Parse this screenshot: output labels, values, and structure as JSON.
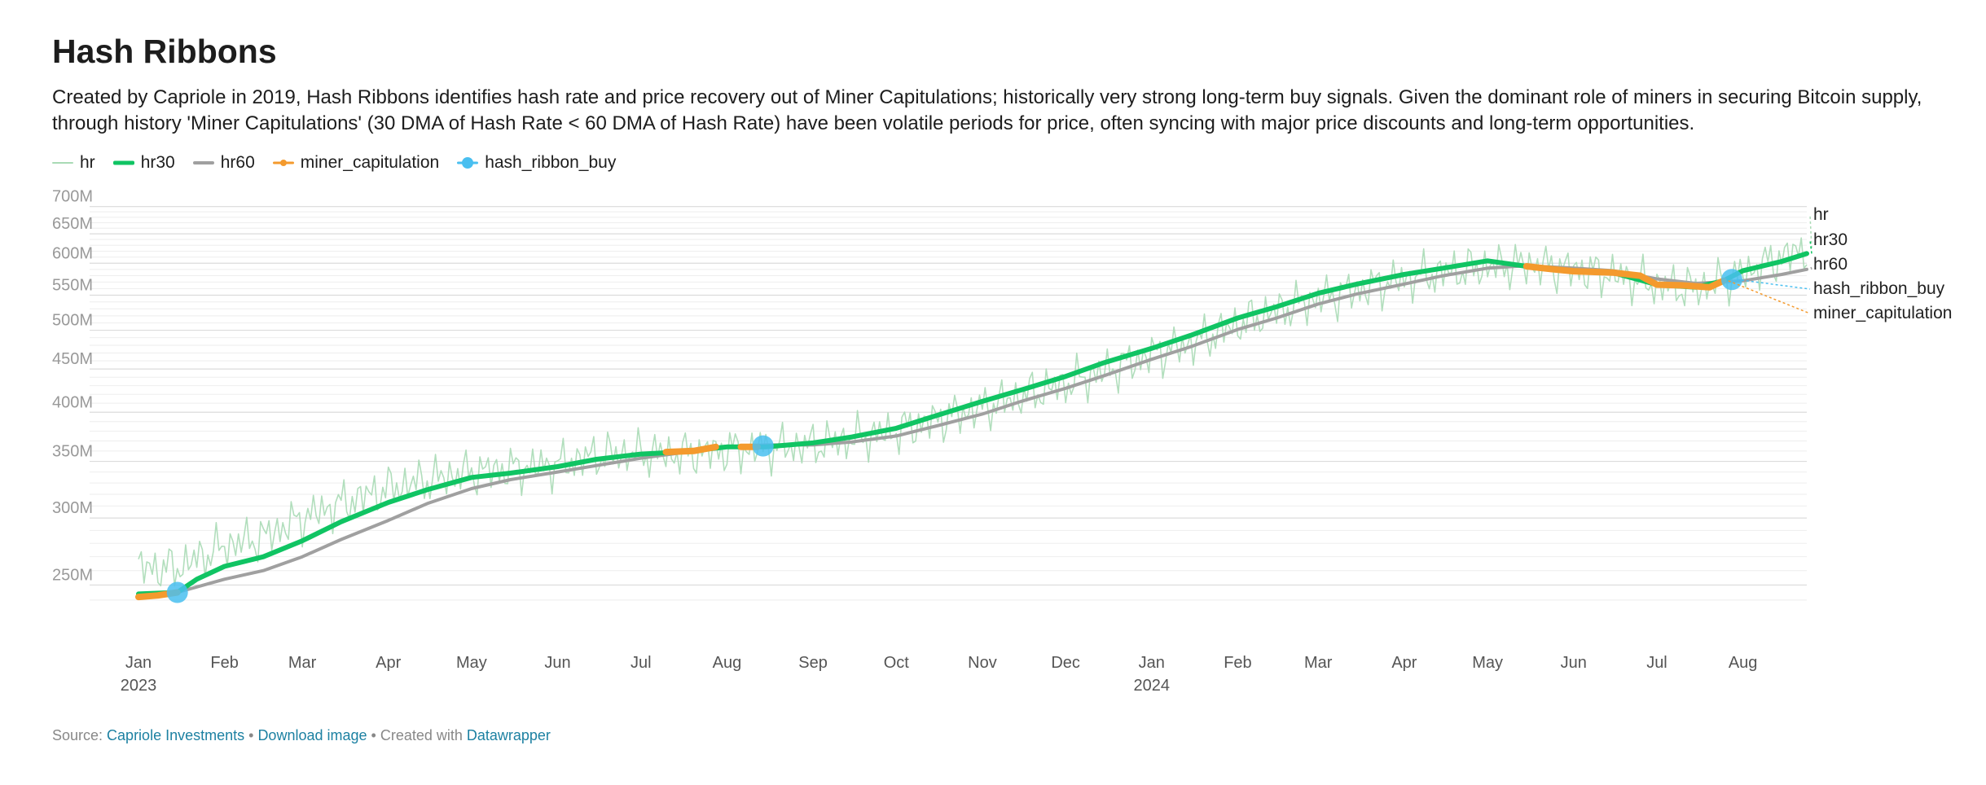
{
  "title": "Hash Ribbons",
  "description": "Created by Capriole in 2019, Hash Ribbons identifies hash rate and price recovery out of Miner Capitulations; historically very strong long-term buy signals. Given the dominant role of miners in securing Bitcoin supply, through history 'Miner Capitulations' (30 DMA of Hash Rate < 60 DMA of Hash Rate) have been volatile periods for price, often syncing with major price discounts and long-term opportunities.",
  "legend": [
    {
      "label": "hr",
      "color": "#a9dab5",
      "style": "thin-line"
    },
    {
      "label": "hr30",
      "color": "#10c463",
      "style": "thick-line"
    },
    {
      "label": "hr60",
      "color": "#a0a0a0",
      "style": "line"
    },
    {
      "label": "miner_capitulation",
      "color": "#f49a2d",
      "style": "line-dot"
    },
    {
      "label": "hash_ribbon_buy",
      "color": "#49bff0",
      "style": "line-bigdot"
    }
  ],
  "footer": {
    "source_prefix": "Source: ",
    "source_link": "Capriole Investments",
    "sep1": " • ",
    "download_link": "Download image",
    "sep2": " • Created with ",
    "tool_link": "Datawrapper"
  },
  "chart_data": {
    "type": "line",
    "scale_y": "log",
    "ylim": [
      228,
      712
    ],
    "x_start": "2023-01-01",
    "x_end": "2024-08-24",
    "y_ticks": [
      {
        "value": 250,
        "label": "250M"
      },
      {
        "value": 300,
        "label": "300M"
      },
      {
        "value": 350,
        "label": "350M"
      },
      {
        "value": 400,
        "label": "400M"
      },
      {
        "value": 450,
        "label": "450M"
      },
      {
        "value": 500,
        "label": "500M"
      },
      {
        "value": 550,
        "label": "550M"
      },
      {
        "value": 600,
        "label": "600M"
      },
      {
        "value": 650,
        "label": "650M"
      },
      {
        "value": 700,
        "label": "700M"
      }
    ],
    "x_ticks": [
      {
        "date": "2023-01-01",
        "label": "Jan",
        "sublabel": "2023"
      },
      {
        "date": "2023-02-01",
        "label": "Feb"
      },
      {
        "date": "2023-03-01",
        "label": "Mar"
      },
      {
        "date": "2023-04-01",
        "label": "Apr"
      },
      {
        "date": "2023-05-01",
        "label": "May"
      },
      {
        "date": "2023-06-01",
        "label": "Jun"
      },
      {
        "date": "2023-07-01",
        "label": "Jul"
      },
      {
        "date": "2023-08-01",
        "label": "Aug"
      },
      {
        "date": "2023-09-01",
        "label": "Sep"
      },
      {
        "date": "2023-10-01",
        "label": "Oct"
      },
      {
        "date": "2023-11-01",
        "label": "Nov"
      },
      {
        "date": "2023-12-01",
        "label": "Dec"
      },
      {
        "date": "2024-01-01",
        "label": "Jan",
        "sublabel": "2024"
      },
      {
        "date": "2024-02-01",
        "label": "Feb"
      },
      {
        "date": "2024-03-01",
        "label": "Mar"
      },
      {
        "date": "2024-04-01",
        "label": "Apr"
      },
      {
        "date": "2024-05-01",
        "label": "May"
      },
      {
        "date": "2024-06-01",
        "label": "Jun"
      },
      {
        "date": "2024-07-01",
        "label": "Jul"
      },
      {
        "date": "2024-08-01",
        "label": "Aug"
      }
    ],
    "series": [
      {
        "name": "hr",
        "color": "#a9dab5",
        "points": [
          [
            "2023-01-01",
            262
          ],
          [
            "2023-01-15",
            262
          ],
          [
            "2023-02-01",
            278
          ],
          [
            "2023-02-15",
            285
          ],
          [
            "2023-03-01",
            300
          ],
          [
            "2023-03-15",
            312
          ],
          [
            "2023-04-01",
            325
          ],
          [
            "2023-04-15",
            333
          ],
          [
            "2023-05-01",
            340
          ],
          [
            "2023-05-15",
            343
          ],
          [
            "2023-06-01",
            347
          ],
          [
            "2023-06-15",
            356
          ],
          [
            "2023-07-01",
            358
          ],
          [
            "2023-07-15",
            357
          ],
          [
            "2023-08-01",
            361
          ],
          [
            "2023-08-15",
            363
          ],
          [
            "2023-09-01",
            366
          ],
          [
            "2023-09-15",
            372
          ],
          [
            "2023-10-01",
            380
          ],
          [
            "2023-10-15",
            392
          ],
          [
            "2023-11-01",
            405
          ],
          [
            "2023-11-15",
            418
          ],
          [
            "2023-12-01",
            432
          ],
          [
            "2023-12-15",
            447
          ],
          [
            "2024-01-01",
            468
          ],
          [
            "2024-01-15",
            482
          ],
          [
            "2024-02-01",
            508
          ],
          [
            "2024-02-15",
            527
          ],
          [
            "2024-03-01",
            545
          ],
          [
            "2024-03-15",
            558
          ],
          [
            "2024-04-01",
            575
          ],
          [
            "2024-04-15",
            585
          ],
          [
            "2024-05-01",
            595
          ],
          [
            "2024-05-15",
            598
          ],
          [
            "2024-06-01",
            590
          ],
          [
            "2024-06-15",
            582
          ],
          [
            "2024-07-01",
            565
          ],
          [
            "2024-07-15",
            560
          ],
          [
            "2024-08-01",
            583
          ],
          [
            "2024-08-15",
            610
          ],
          [
            "2024-08-24",
            625
          ]
        ]
      },
      {
        "name": "hr30",
        "color": "#10c463",
        "points": [
          [
            "2023-01-01",
            244
          ],
          [
            "2023-01-15",
            245
          ],
          [
            "2023-01-22",
            254
          ],
          [
            "2023-02-01",
            263
          ],
          [
            "2023-02-15",
            270
          ],
          [
            "2023-03-01",
            282
          ],
          [
            "2023-03-15",
            297
          ],
          [
            "2023-04-01",
            313
          ],
          [
            "2023-04-15",
            324
          ],
          [
            "2023-05-01",
            335
          ],
          [
            "2023-05-15",
            339
          ],
          [
            "2023-06-01",
            345
          ],
          [
            "2023-06-15",
            352
          ],
          [
            "2023-07-01",
            357
          ],
          [
            "2023-07-15",
            359
          ],
          [
            "2023-08-01",
            364
          ],
          [
            "2023-08-15",
            364
          ],
          [
            "2023-09-01",
            368
          ],
          [
            "2023-09-15",
            374
          ],
          [
            "2023-10-01",
            383
          ],
          [
            "2023-10-15",
            396
          ],
          [
            "2023-11-01",
            412
          ],
          [
            "2023-11-15",
            425
          ],
          [
            "2023-12-01",
            441
          ],
          [
            "2023-12-15",
            458
          ],
          [
            "2024-01-01",
            476
          ],
          [
            "2024-01-15",
            493
          ],
          [
            "2024-02-01",
            517
          ],
          [
            "2024-02-15",
            533
          ],
          [
            "2024-03-01",
            553
          ],
          [
            "2024-03-15",
            567
          ],
          [
            "2024-04-01",
            582
          ],
          [
            "2024-04-15",
            592
          ],
          [
            "2024-05-01",
            604
          ],
          [
            "2024-05-15",
            595
          ],
          [
            "2024-06-01",
            587
          ],
          [
            "2024-06-15",
            585
          ],
          [
            "2024-07-01",
            566
          ],
          [
            "2024-07-15",
            562
          ],
          [
            "2024-07-25",
            572
          ],
          [
            "2024-08-01",
            588
          ],
          [
            "2024-08-15",
            603
          ],
          [
            "2024-08-24",
            616
          ]
        ]
      },
      {
        "name": "hr60",
        "color": "#a0a0a0",
        "points": [
          [
            "2023-01-01",
            242
          ],
          [
            "2023-01-15",
            245
          ],
          [
            "2023-02-01",
            254
          ],
          [
            "2023-02-15",
            260
          ],
          [
            "2023-03-01",
            270
          ],
          [
            "2023-03-15",
            283
          ],
          [
            "2023-04-01",
            298
          ],
          [
            "2023-04-15",
            312
          ],
          [
            "2023-05-01",
            325
          ],
          [
            "2023-05-15",
            333
          ],
          [
            "2023-06-01",
            340
          ],
          [
            "2023-06-15",
            346
          ],
          [
            "2023-07-01",
            353
          ],
          [
            "2023-07-15",
            358
          ],
          [
            "2023-08-01",
            364
          ],
          [
            "2023-08-15",
            366
          ],
          [
            "2023-09-01",
            366
          ],
          [
            "2023-09-15",
            369
          ],
          [
            "2023-10-01",
            375
          ],
          [
            "2023-10-15",
            385
          ],
          [
            "2023-11-01",
            398
          ],
          [
            "2023-11-15",
            412
          ],
          [
            "2023-12-01",
            427
          ],
          [
            "2023-12-15",
            442
          ],
          [
            "2024-01-01",
            462
          ],
          [
            "2024-01-15",
            478
          ],
          [
            "2024-02-01",
            501
          ],
          [
            "2024-02-15",
            517
          ],
          [
            "2024-03-01",
            537
          ],
          [
            "2024-03-15",
            552
          ],
          [
            "2024-04-01",
            567
          ],
          [
            "2024-04-15",
            580
          ],
          [
            "2024-05-01",
            592
          ],
          [
            "2024-05-15",
            596
          ],
          [
            "2024-06-01",
            592
          ],
          [
            "2024-06-15",
            588
          ],
          [
            "2024-07-01",
            575
          ],
          [
            "2024-07-15",
            568
          ],
          [
            "2024-08-01",
            572
          ],
          [
            "2024-08-15",
            582
          ],
          [
            "2024-08-24",
            590
          ]
        ]
      },
      {
        "name": "miner_capitulation",
        "color": "#f49a2d",
        "segments": [
          [
            [
              "2023-01-01",
              242
            ],
            [
              "2023-01-08",
              243
            ],
            [
              "2023-01-15",
              245
            ]
          ],
          [
            [
              "2023-07-10",
              359
            ],
            [
              "2023-07-20",
              360
            ],
            [
              "2023-07-28",
              364
            ]
          ],
          [
            [
              "2023-08-06",
              364
            ],
            [
              "2023-08-12",
              364
            ]
          ],
          [
            [
              "2024-05-15",
              595
            ],
            [
              "2024-05-25",
              590
            ],
            [
              "2024-06-01",
              587
            ],
            [
              "2024-06-15",
              585
            ],
            [
              "2024-06-25",
              580
            ],
            [
              "2024-07-01",
              566
            ],
            [
              "2024-07-10",
              565
            ],
            [
              "2024-07-20",
              562
            ],
            [
              "2024-07-25",
              572
            ]
          ]
        ]
      },
      {
        "name": "hash_ribbon_buy",
        "color": "#49bff0",
        "points": [
          [
            "2023-01-15",
            245
          ],
          [
            "2023-08-14",
            365
          ],
          [
            "2024-07-28",
            574
          ]
        ]
      }
    ],
    "end_labels": [
      {
        "text": "hr",
        "series": "hr"
      },
      {
        "text": "hr30",
        "series": "hr30"
      },
      {
        "text": "hr60",
        "series": "hr60"
      },
      {
        "text": "hash_ribbon_buy",
        "series": "hash_ribbon_buy"
      },
      {
        "text": "miner_capitulation",
        "series": "miner_capitulation"
      }
    ]
  }
}
